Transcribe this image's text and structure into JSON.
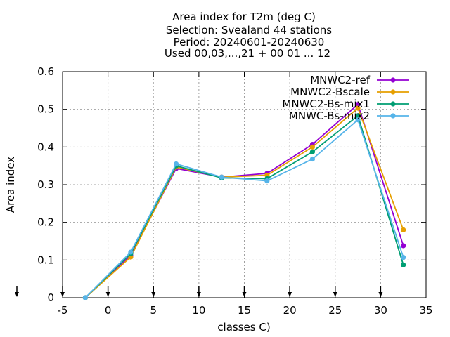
{
  "chart_data": {
    "type": "line",
    "title_lines": [
      "Area index  for T2m (deg C)",
      "Selection: Svealand     44 stations",
      "Period: 20240601-20240630",
      "Used 00,03,...,21 + 00 01 ... 12"
    ],
    "xlabel": "classes C)",
    "ylabel": "Area index",
    "xlim": [
      -5,
      35
    ],
    "ylim": [
      0,
      0.6
    ],
    "xticks": [
      -5,
      0,
      5,
      10,
      15,
      20,
      25,
      30,
      35
    ],
    "yticks": [
      0,
      0.1,
      0.2,
      0.3,
      0.4,
      0.5,
      0.6
    ],
    "ytick_labels": [
      "0",
      "0.1",
      "0.2",
      "0.3",
      "0.4",
      "0.5",
      "0.6"
    ],
    "grid": true,
    "legend_position": "top-right",
    "x": [
      -2.5,
      2.5,
      7.5,
      12.5,
      17.5,
      22.5,
      27.5,
      32.5
    ],
    "series": [
      {
        "name": "MNWC2-ref",
        "color": "#9400d3",
        "values": [
          0.0,
          0.112,
          0.343,
          0.32,
          0.33,
          0.407,
          0.513,
          0.138
        ]
      },
      {
        "name": "MNWC2-Bscale",
        "color": "#e69f00",
        "values": [
          0.0,
          0.108,
          0.347,
          0.32,
          0.325,
          0.4,
          0.503,
          0.18
        ]
      },
      {
        "name": "MNWC2-Bs-mix1",
        "color": "#009e73",
        "values": [
          0.0,
          0.117,
          0.35,
          0.318,
          0.316,
          0.387,
          0.483,
          0.087
        ]
      },
      {
        "name": "MNWC-Bs-mix2",
        "color": "#56b4e9",
        "values": [
          0.0,
          0.121,
          0.355,
          0.32,
          0.31,
          0.368,
          0.472,
          0.107
        ]
      }
    ],
    "bottom_arrow_markers_x": [
      -5,
      0,
      5,
      10,
      15,
      20,
      25,
      30
    ]
  }
}
